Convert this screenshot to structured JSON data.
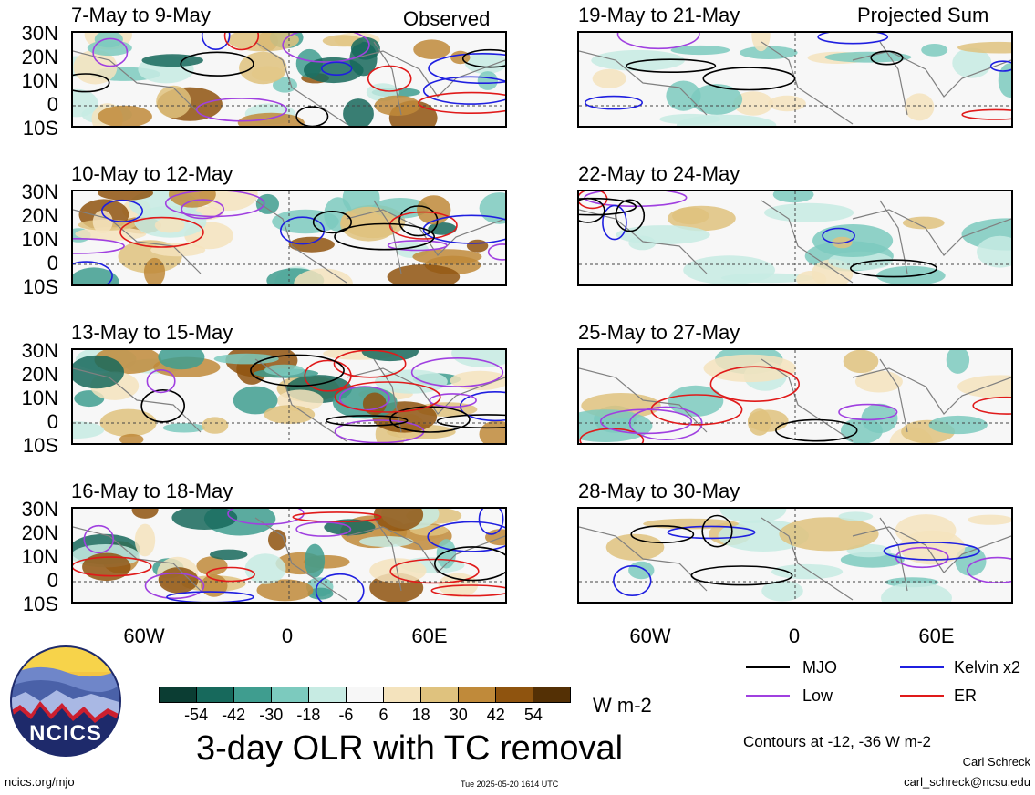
{
  "left_panels": [
    {
      "label": "7-May to 9-May"
    },
    {
      "label": "10-May to 12-May"
    },
    {
      "label": "13-May to 15-May"
    },
    {
      "label": "16-May to 18-May"
    }
  ],
  "right_panels": [
    {
      "label": "19-May to 21-May"
    },
    {
      "label": "22-May to 24-May"
    },
    {
      "label": "25-May to 27-May"
    },
    {
      "label": "28-May to 30-May"
    }
  ],
  "tags": {
    "left": "Observed",
    "right": "Projected Sum"
  },
  "lat_labels": [
    "30N",
    "20N",
    "10N",
    "0",
    "10S"
  ],
  "lon_labels": [
    "60W",
    "0",
    "60E"
  ],
  "colorbar": {
    "labels": [
      "-54",
      "-42",
      "-30",
      "-18",
      "-6",
      "6",
      "18",
      "30",
      "42",
      "54"
    ],
    "colors": [
      "#0b3d33",
      "#17695c",
      "#3f9d8f",
      "#7ccabe",
      "#c7ebe3",
      "#f7f7f7",
      "#f4e3bd",
      "#dfc27e",
      "#c08a3a",
      "#8f540f",
      "#543005"
    ],
    "units": "W m-2"
  },
  "legend": {
    "mjo": "MJO",
    "kelvin": "Kelvin x2",
    "low": "Low",
    "er": "ER",
    "colors": {
      "mjo": "#000000",
      "kelvin": "#1f1fe0",
      "low": "#a040e0",
      "er": "#e01a1a"
    }
  },
  "contours_note": "Contours at -12, -36 W m-2",
  "main_title": "3-day OLR with TC removal",
  "logo_text": "NCICS",
  "footer": {
    "left": "ncics.org/mjo",
    "center": "Tue 2025-05-20 1614 UTC",
    "author": "Carl Schreck",
    "email": "carl_schreck@ncsu.edu"
  }
}
